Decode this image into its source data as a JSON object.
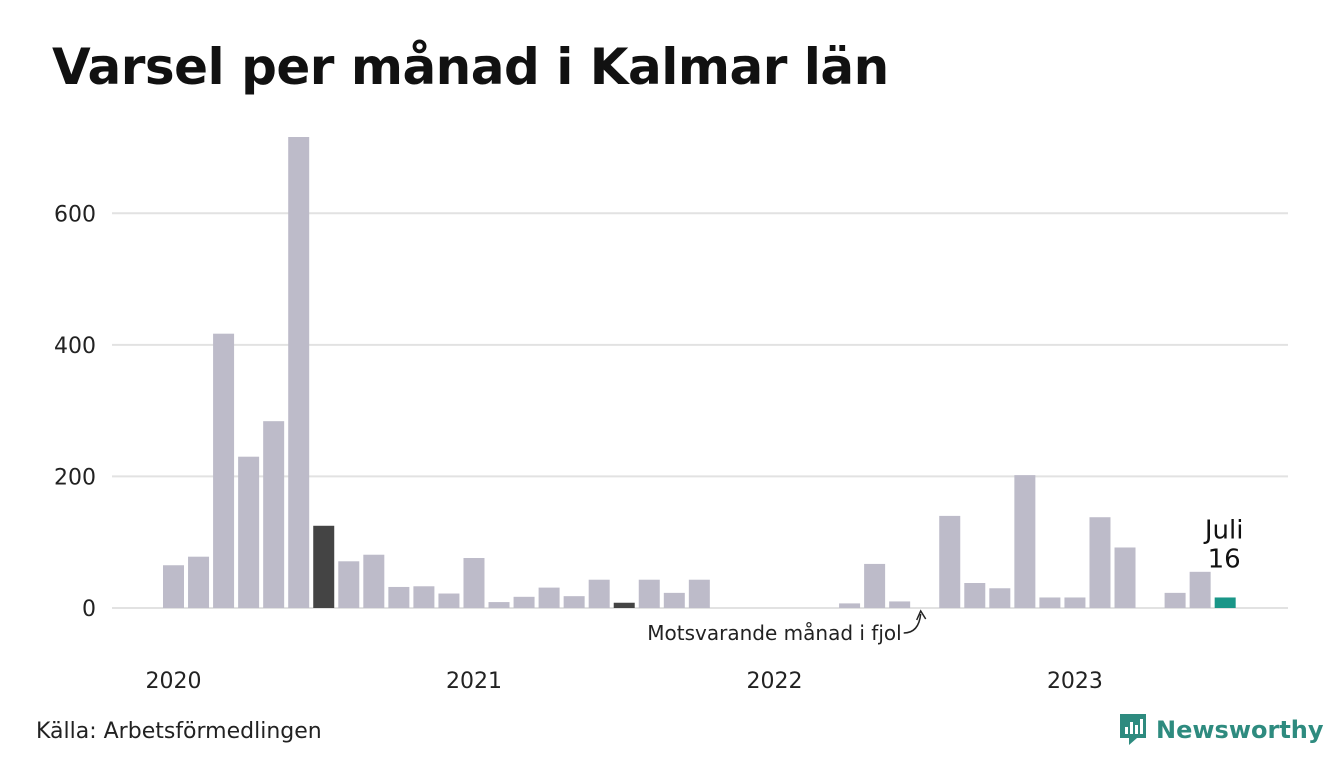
{
  "title": "Varsel per månad i Kalmar län",
  "source": "Källa: Arbetsförmedlingen",
  "brand": {
    "name": "Newsworthy",
    "icon": "newsworthy-logo-icon"
  },
  "colors": {
    "bar": "#bdbbc9",
    "highlight_previous": "#444444",
    "current": "#1a9688",
    "grid": "#e2e2e2",
    "brand": "#2e8b7f"
  },
  "chart_data": {
    "type": "bar",
    "categories": [
      "2020-01",
      "2020-02",
      "2020-03",
      "2020-04",
      "2020-05",
      "2020-06",
      "2020-07",
      "2020-08",
      "2020-09",
      "2020-10",
      "2020-11",
      "2020-12",
      "2021-01",
      "2021-02",
      "2021-03",
      "2021-04",
      "2021-05",
      "2021-06",
      "2021-07",
      "2021-08",
      "2021-09",
      "2021-10",
      "2021-11",
      "2021-12",
      "2022-01",
      "2022-02",
      "2022-03",
      "2022-04",
      "2022-05",
      "2022-06",
      "2022-07",
      "2022-08",
      "2022-09",
      "2022-10",
      "2022-11",
      "2022-12",
      "2023-01",
      "2023-02",
      "2023-03",
      "2023-04",
      "2023-05",
      "2023-06",
      "2023-07"
    ],
    "values": [
      65,
      78,
      417,
      230,
      284,
      716,
      125,
      71,
      81,
      32,
      33,
      22,
      76,
      9,
      17,
      31,
      18,
      43,
      8,
      43,
      23,
      43,
      0,
      0,
      0,
      0,
      0,
      7,
      67,
      10,
      0,
      140,
      38,
      30,
      202,
      16,
      16,
      138,
      92,
      0,
      23,
      55,
      16
    ],
    "highlight_previous": [
      "2020-07",
      "2021-07"
    ],
    "current": "2023-07",
    "x_ticks": [
      "2020",
      "2021",
      "2022",
      "2023"
    ],
    "y_ticks": [
      0,
      200,
      400,
      600
    ],
    "ylim": [
      0,
      716
    ],
    "grid": true,
    "current_label": {
      "month": "Juli",
      "value": "16"
    },
    "annotation": {
      "text": "Motsvarande månad i fjol",
      "target": "2022-07"
    }
  }
}
